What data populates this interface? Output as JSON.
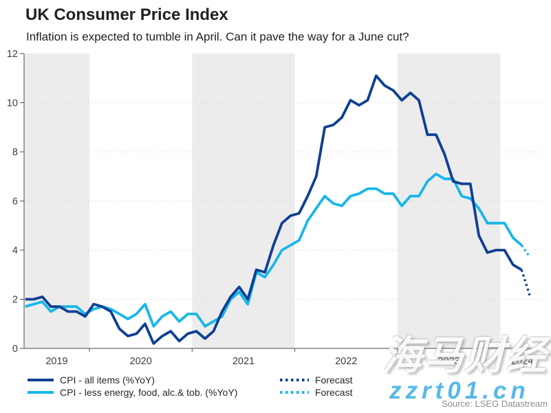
{
  "header": {
    "title": "UK Consumer Price Index",
    "subtitle": "Inflation is expected to tumble in April. Can it pave the way for a June cut?"
  },
  "legend": {
    "items": [
      {
        "label": "CPI - all items (%YoY)",
        "color": "#0e3f92",
        "style": "solid"
      },
      {
        "label": "CPI - less energy, food, alc.& tob. (%YoY)",
        "color": "#17b7e9",
        "style": "solid"
      },
      {
        "label": "Forecast",
        "color": "#0e3f92",
        "style": "dotted"
      },
      {
        "label": "Forecast",
        "color": "#17b7e9",
        "style": "dotted"
      }
    ]
  },
  "footer": {
    "source": "Source: LSEG Datastream"
  },
  "watermarks": {
    "chinese": "海马财经",
    "site": "zzrt01.cn"
  },
  "chart_data": {
    "type": "line",
    "title": "UK Consumer Price Index",
    "subtitle": "Inflation is expected to tumble in April. Can it pave the way for a June cut?",
    "x_start_month": "2019-05",
    "months_before_2020": 8,
    "x_year_labels": [
      2019,
      2020,
      2021,
      2022,
      2023,
      2024
    ],
    "ylim": [
      0,
      12
    ],
    "yticks": [
      0,
      2,
      4,
      6,
      8,
      10,
      12
    ],
    "grid": "horizontal-dotted",
    "legend_position": "bottom-left",
    "colors": {
      "band_gray": "#ececec",
      "gridline": "#d9d9d9",
      "axis": "#4d4d4d",
      "tick_label": "#3d3d3d"
    },
    "bands": {
      "gray_years": [
        2019,
        2021,
        2023
      ]
    },
    "series": [
      {
        "id": "cpi-core",
        "name": "CPI - less energy, food, alc.& tob. (%YoY)",
        "color": "#17b7e9",
        "style": "solid",
        "start_index": 0,
        "values": [
          1.7,
          1.8,
          1.9,
          1.5,
          1.7,
          1.7,
          1.7,
          1.4,
          1.6,
          1.7,
          1.6,
          1.4,
          1.2,
          1.4,
          1.8,
          0.9,
          1.3,
          1.5,
          1.1,
          1.4,
          1.4,
          0.9,
          1.1,
          1.3,
          2.0,
          2.3,
          1.8,
          3.1,
          2.9,
          3.4,
          4.0,
          4.2,
          4.4,
          5.2,
          5.7,
          6.2,
          5.9,
          5.8,
          6.2,
          6.3,
          6.5,
          6.5,
          6.3,
          6.3,
          5.8,
          6.2,
          6.2,
          6.8,
          7.1,
          6.9,
          6.9,
          6.2,
          6.1,
          5.7,
          5.1,
          5.1,
          5.1,
          4.5,
          4.2
        ]
      },
      {
        "id": "forecast-core",
        "name": "Forecast",
        "color": "#17b7e9",
        "style": "dotted",
        "start_index": 58,
        "values": [
          4.2,
          3.7
        ]
      },
      {
        "id": "cpi-all-items",
        "name": "CPI - all items (%YoY)",
        "color": "#0e3f92",
        "style": "solid",
        "start_index": 0,
        "values": [
          2.0,
          2.0,
          2.1,
          1.7,
          1.7,
          1.5,
          1.5,
          1.3,
          1.8,
          1.7,
          1.5,
          0.8,
          0.5,
          0.6,
          1.0,
          0.2,
          0.5,
          0.7,
          0.3,
          0.6,
          0.7,
          0.4,
          0.7,
          1.5,
          2.1,
          2.5,
          2.0,
          3.2,
          3.1,
          4.2,
          5.1,
          5.4,
          5.5,
          6.2,
          7.0,
          9.0,
          9.1,
          9.4,
          10.1,
          9.9,
          10.1,
          11.1,
          10.7,
          10.5,
          10.1,
          10.4,
          10.1,
          8.7,
          8.7,
          7.9,
          6.8,
          6.7,
          6.7,
          4.6,
          3.9,
          4.0,
          4.0,
          3.4,
          3.2
        ]
      },
      {
        "id": "forecast-all-items",
        "name": "Forecast",
        "color": "#0e3f92",
        "style": "dotted",
        "start_index": 58,
        "values": [
          3.2,
          2.1
        ]
      }
    ]
  }
}
